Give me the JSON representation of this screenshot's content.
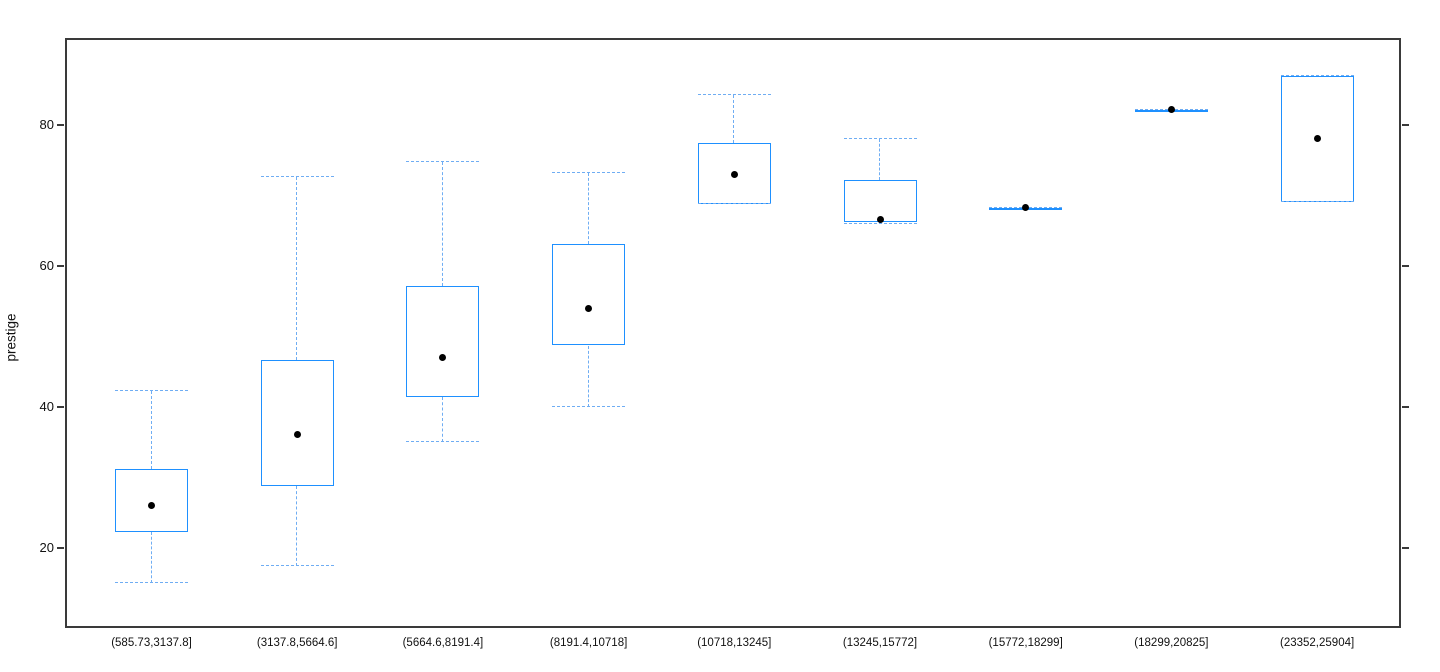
{
  "chart_data": {
    "type": "boxplot",
    "title": "",
    "xlabel": "",
    "ylabel": "prestige",
    "ylim": [
      8.6,
      92.35
    ],
    "y_ticks": [
      20,
      40,
      60,
      80
    ],
    "grid": false,
    "legend": "none",
    "frame": true,
    "box_color": "#1E90FF",
    "whisker_color": "#6FADF3",
    "point_color": "#000000",
    "categories": [
      "(585.73,3137.8]",
      "(3137.8,5664.6]",
      "(5664.6,8191.4]",
      "(8191.4,10718]",
      "(10718,13245]",
      "(13245,15772]",
      "(15772,18299]",
      "(18299,20825]",
      "(23352,25904]"
    ],
    "series": [
      {
        "label": "(585.73,3137.8]",
        "whisker_low": 15.0,
        "q1": 22.2,
        "mean": 26.0,
        "q3": 31.1,
        "whisker_high": 42.2
      },
      {
        "label": "(3137.8,5664.6]",
        "whisker_low": 17.4,
        "q1": 28.8,
        "mean": 36.0,
        "q3": 46.6,
        "whisker_high": 72.6
      },
      {
        "label": "(5664.6,8191.4]",
        "whisker_low": 35.0,
        "q1": 41.4,
        "mean": 47.0,
        "q3": 57.2,
        "whisker_high": 74.8
      },
      {
        "label": "(8191.4,10718]",
        "whisker_low": 40.0,
        "q1": 48.7,
        "mean": 54.0,
        "q3": 63.1,
        "whisker_high": 73.2
      },
      {
        "label": "(10718,13245]",
        "whisker_low": 68.8,
        "q1": 68.8,
        "mean": 73.0,
        "q3": 77.4,
        "whisker_high": 84.3
      },
      {
        "label": "(13245,15772]",
        "whisker_low": 65.9,
        "q1": 66.3,
        "mean": 66.6,
        "q3": 72.2,
        "whisker_high": 78.0
      },
      {
        "label": "(15772,18299]",
        "whisker_low": 68.2,
        "q1": 68.2,
        "mean": 68.3,
        "q3": 68.2,
        "whisker_high": 68.2
      },
      {
        "label": "(18299,20825]",
        "whisker_low": 82.2,
        "q1": 82.2,
        "mean": 82.2,
        "q3": 82.2,
        "whisker_high": 82.2
      },
      {
        "label": "(23352,25904]",
        "whisker_low": 69.0,
        "q1": 69.0,
        "mean": 78.1,
        "q3": 86.9,
        "whisker_high": 86.9
      }
    ]
  }
}
